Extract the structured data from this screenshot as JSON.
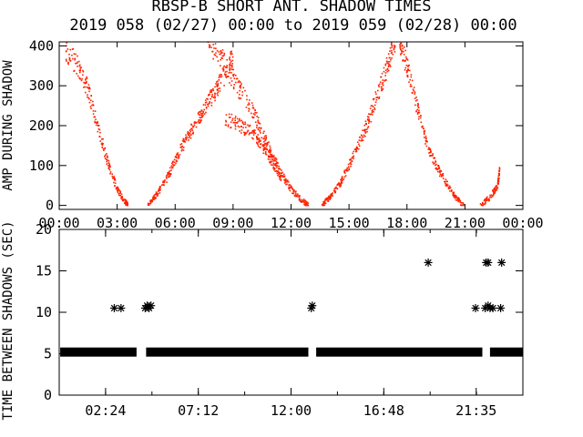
{
  "title": "RBSP-B SHORT ANT. SHADOW TIMES",
  "subtitle": "2019 058 (02/27) 00:00 to 2019 059 (02/28) 00:00",
  "colors": {
    "amp": "#ff2200",
    "axes": "#000000",
    "background": "#ffffff"
  },
  "chart_data": [
    {
      "type": "scatter",
      "ylabel": "AMP DURING SHADOW",
      "xlim": [
        "00:00",
        "24:00"
      ],
      "ylim": [
        -10,
        410
      ],
      "x_ticks": [
        "00:00",
        "03:00",
        "06:00",
        "09:00",
        "12:00",
        "15:00",
        "18:00",
        "21:00",
        "00:00"
      ],
      "y_ticks": [
        "0",
        "100",
        "200",
        "300",
        "400"
      ],
      "grid": false,
      "envelopes": [
        {
          "hours": [
            0.3,
            1.0,
            1.5,
            2.0,
            2.5,
            3.0,
            3.4,
            3.55
          ],
          "values": [
            390,
            350,
            290,
            200,
            110,
            40,
            10,
            0
          ]
        },
        {
          "hours": [
            4.6,
            5.0,
            5.5,
            6.0,
            6.5,
            7.0,
            7.5,
            8.0,
            8.5,
            9.0
          ],
          "values": [
            0,
            25,
            60,
            110,
            160,
            200,
            240,
            280,
            320,
            370
          ]
        },
        {
          "hours": [
            7.7,
            8.5,
            9.2,
            10.0,
            10.5,
            11.0,
            11.5,
            12.0,
            12.5,
            12.9
          ],
          "values": [
            410,
            360,
            300,
            240,
            180,
            130,
            80,
            40,
            15,
            0
          ]
        },
        {
          "hours": [
            8.6,
            9.4,
            10.0,
            10.5,
            11.0,
            11.5
          ],
          "values": [
            220,
            200,
            180,
            150,
            110,
            70
          ]
        },
        {
          "hours": [
            13.6,
            14.0,
            14.5,
            15.0,
            15.5,
            16.0,
            16.5,
            17.0,
            17.4
          ],
          "values": [
            0,
            20,
            50,
            100,
            150,
            210,
            280,
            350,
            410
          ]
        },
        {
          "hours": [
            17.6,
            18.0,
            18.5,
            19.0,
            19.5,
            20.0,
            20.5,
            20.95
          ],
          "values": [
            410,
            350,
            250,
            160,
            100,
            60,
            20,
            0
          ]
        },
        {
          "hours": [
            21.8,
            22.3,
            22.7,
            22.8
          ],
          "values": [
            0,
            20,
            50,
            90
          ]
        }
      ]
    },
    {
      "type": "scatter",
      "ylabel": "TIME BETWEEN SHADOWS (SEC)",
      "xlim": [
        "00:00",
        "24:00"
      ],
      "ylim": [
        0,
        20
      ],
      "x_ticks": [
        "02:24",
        "07:12",
        "12:00",
        "16:48",
        "21:35"
      ],
      "y_ticks": [
        "0",
        "5",
        "10",
        "15",
        "20"
      ],
      "grid": false,
      "baseline": {
        "value": 5.2,
        "ranges": [
          [
            0.05,
            4.0
          ],
          [
            4.5,
            12.9
          ],
          [
            13.3,
            21.9
          ],
          [
            22.3,
            24.0
          ]
        ]
      },
      "points": [
        {
          "hour": 2.85,
          "value": 10.5
        },
        {
          "hour": 3.2,
          "value": 10.5
        },
        {
          "hour": 4.45,
          "value": 10.5
        },
        {
          "hour": 4.55,
          "value": 10.8
        },
        {
          "hour": 4.65,
          "value": 10.5
        },
        {
          "hour": 4.75,
          "value": 10.8
        },
        {
          "hour": 13.05,
          "value": 10.5
        },
        {
          "hour": 13.1,
          "value": 10.8
        },
        {
          "hour": 19.1,
          "value": 16.0
        },
        {
          "hour": 21.55,
          "value": 10.5
        },
        {
          "hour": 22.1,
          "value": 16.0
        },
        {
          "hour": 22.2,
          "value": 16.0
        },
        {
          "hour": 22.05,
          "value": 10.5
        },
        {
          "hour": 22.2,
          "value": 10.8
        },
        {
          "hour": 22.3,
          "value": 10.5
        },
        {
          "hour": 22.45,
          "value": 10.5
        },
        {
          "hour": 22.85,
          "value": 10.5
        },
        {
          "hour": 22.9,
          "value": 16.0
        }
      ]
    }
  ]
}
